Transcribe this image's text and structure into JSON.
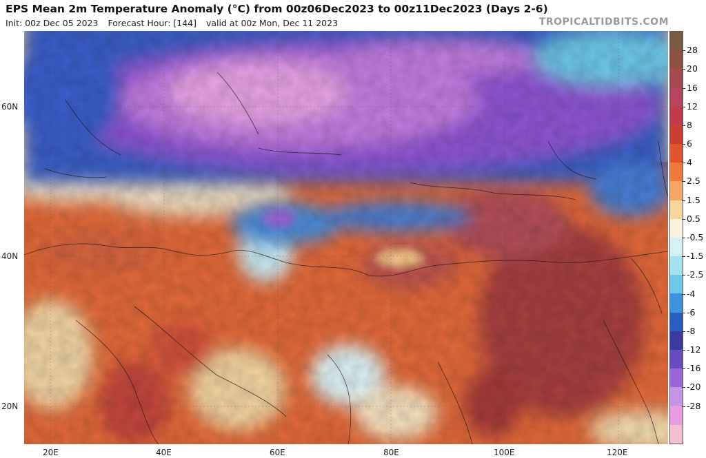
{
  "header": {
    "title": "EPS Mean 2m Temperature Anomaly (°C) from 00z06Dec2023 to 00z11Dec2023 (Days 2-6)",
    "init": "Init: 00z Dec 05 2023",
    "forecast_hour": "Forecast Hour: [144]",
    "valid": "valid at 00z Mon, Dec 11 2023",
    "brand": "TROPICALTIDBITS.COM"
  },
  "axes": {
    "lat_labels": [
      "60N",
      "40N",
      "20N"
    ],
    "lon_labels": [
      "20E",
      "40E",
      "60E",
      "80E",
      "100E",
      "120E"
    ]
  },
  "colorbar": {
    "labels": [
      "28",
      "20",
      "16",
      "12",
      "8",
      "6",
      "4",
      "2.5",
      "1.5",
      "0.5",
      "-0.5",
      "-1.5",
      "-2.5",
      "-4",
      "-6",
      "-8",
      "-12",
      "-16",
      "-20",
      "-28"
    ],
    "colors": [
      "#7a5a44",
      "#8e5040",
      "#a64a52",
      "#b8455f",
      "#c23a4a",
      "#cc3e32",
      "#e0552e",
      "#ef7a3c",
      "#f6a565",
      "#f8d59a",
      "#fbf1dc",
      "#d6f2f6",
      "#a4e2ef",
      "#6ec8ea",
      "#3d93dc",
      "#2a5fc2",
      "#3a3a9f",
      "#6a4cc0",
      "#9b67d8",
      "#c594e6",
      "#ea9ce2",
      "#f4bfd0"
    ]
  }
}
